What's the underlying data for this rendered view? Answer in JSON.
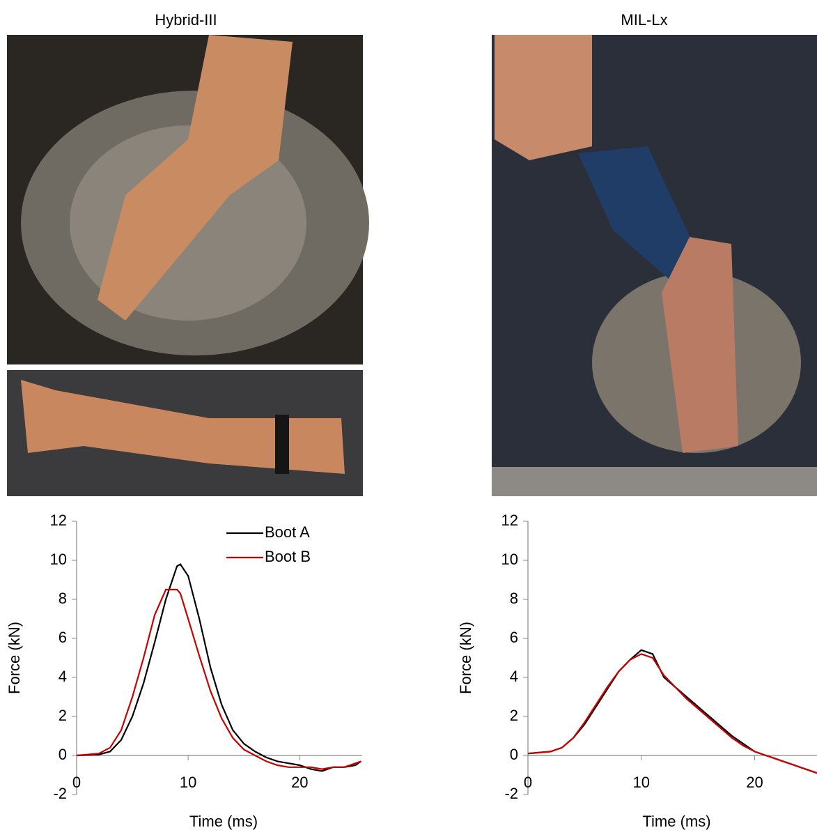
{
  "chart_data": [
    {
      "type": "line",
      "title": "Hybrid-III",
      "xlabel": "Time (ms)",
      "ylabel": "Force (kN)",
      "x": [
        0,
        2,
        3,
        4,
        5,
        6,
        7,
        8,
        9,
        9.3,
        10,
        11,
        12,
        13,
        14,
        15,
        16,
        17,
        18,
        19,
        20,
        21,
        22,
        23,
        24,
        25,
        25.5
      ],
      "series": [
        {
          "name": "Boot A",
          "color": "#000000",
          "values": [
            0,
            0.05,
            0.2,
            0.8,
            2,
            3.7,
            5.8,
            8,
            9.7,
            9.8,
            9.2,
            7,
            4.5,
            2.6,
            1.3,
            0.6,
            0.2,
            -0.1,
            -0.3,
            -0.4,
            -0.5,
            -0.7,
            -0.8,
            -0.6,
            -0.6,
            -0.5,
            -0.3
          ]
        },
        {
          "name": "Boot B",
          "color": "#cc0000",
          "values": [
            0,
            0.1,
            0.4,
            1.3,
            3,
            5,
            7.2,
            8.5,
            8.5,
            8.3,
            7,
            5.1,
            3.3,
            1.9,
            0.9,
            0.3,
            0,
            -0.3,
            -0.5,
            -0.6,
            -0.6,
            -0.6,
            -0.7,
            -0.6,
            -0.6,
            -0.4,
            -0.3
          ]
        }
      ],
      "xlim": [
        0,
        25.6
      ],
      "ylim": [
        -2,
        12
      ],
      "xticks": [
        0,
        10,
        20
      ],
      "yticks": [
        -2,
        0,
        2,
        4,
        6,
        8,
        10,
        12
      ],
      "legend": "top-right"
    },
    {
      "type": "line",
      "title": "MIL-Lx",
      "xlabel": "Time (ms)",
      "ylabel": "Force  (kN)",
      "x": [
        0,
        2,
        3,
        4,
        5,
        6,
        7,
        8,
        9,
        10,
        11,
        12,
        13,
        14,
        15,
        16,
        17,
        18,
        19,
        20,
        21,
        22,
        23,
        24,
        25,
        25.5
      ],
      "series": [
        {
          "color": "#000000",
          "values": [
            0.1,
            0.2,
            0.4,
            0.9,
            1.6,
            2.5,
            3.4,
            4.3,
            4.9,
            5.4,
            5.2,
            4,
            3.5,
            3,
            2.5,
            2,
            1.5,
            1,
            0.6,
            0.2,
            0,
            -0.2,
            -0.4,
            -0.6,
            -0.8,
            -0.9
          ]
        },
        {
          "color": "#cc0000",
          "values": [
            0.1,
            0.2,
            0.4,
            0.9,
            1.7,
            2.6,
            3.5,
            4.3,
            4.9,
            5.2,
            5.0,
            4.1,
            3.5,
            2.9,
            2.4,
            1.9,
            1.4,
            0.9,
            0.5,
            0.2,
            0,
            -0.2,
            -0.4,
            -0.6,
            -0.8,
            -0.9
          ]
        }
      ],
      "xlim": [
        0,
        25.5
      ],
      "ylim": [
        -2,
        12
      ],
      "xticks": [
        0,
        10,
        20
      ],
      "yticks": [
        -2,
        0,
        2,
        4,
        6,
        8,
        10,
        12
      ]
    }
  ]
}
